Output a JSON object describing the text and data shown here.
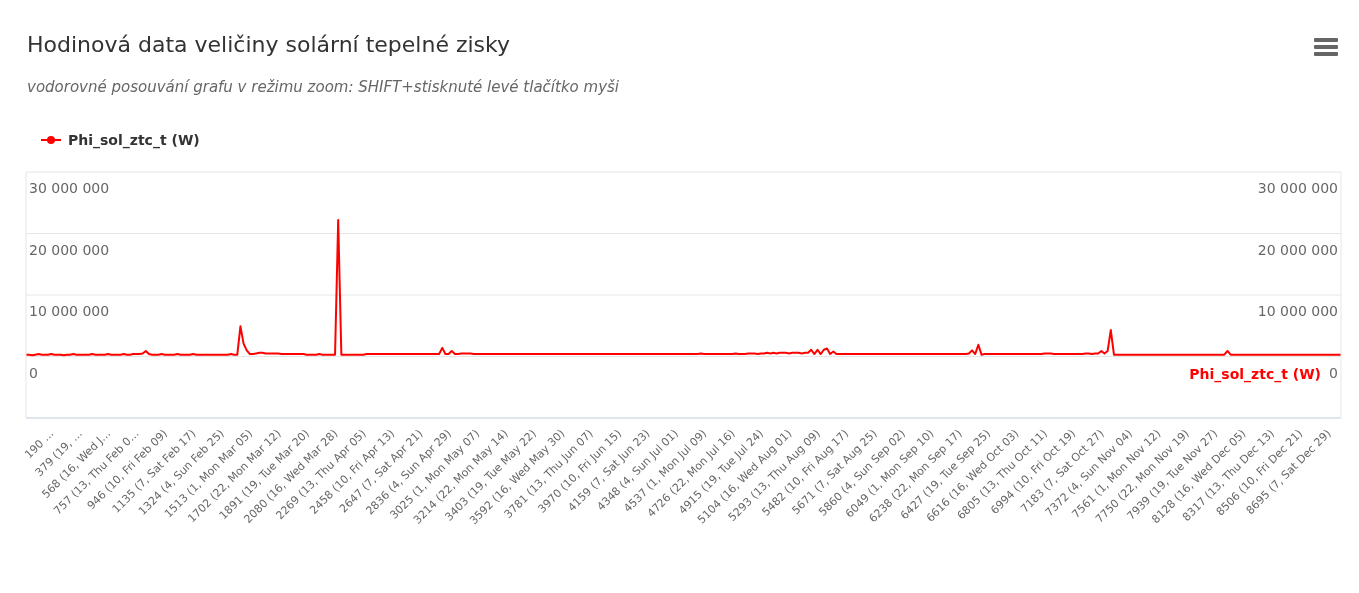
{
  "chart_data": {
    "type": "line",
    "title": "Hodinová data veličiny solární tepelné zisky",
    "subtitle": "vodorovné posouvání grafu v režimu zoom: SHIFT+stisknuté levé tlačítko myši",
    "y2label": "Phi_sol_ztc_t (W)",
    "categories": [
      null,
      null,
      null,
      null,
      null,
      null,
      null,
      null,
      null,
      "190 …",
      null,
      null,
      null,
      null,
      null,
      null,
      null,
      null,
      "379 (19, …",
      null,
      null,
      null,
      null,
      null,
      null,
      null,
      null,
      "568 (16, Wed J…",
      null,
      null,
      null,
      null,
      null,
      null,
      null,
      null,
      "757 (13, Thu Feb 0…",
      null,
      null,
      null,
      null,
      null,
      null,
      null,
      null,
      "946 (10, Fri Feb 09)",
      null,
      null,
      null,
      null,
      null,
      null,
      null,
      null,
      "1135 (7, Sat Feb 17)",
      null,
      null,
      null,
      null,
      null,
      null,
      null,
      null,
      "1324 (4, Sun Feb 25)",
      null,
      null,
      null,
      null,
      null,
      null,
      null,
      null,
      "1513 (1, Mon Mar 05)",
      null,
      null,
      null,
      null,
      null,
      null,
      null,
      null,
      "1702 (22, Mon Mar 12)",
      null,
      null,
      null,
      null,
      null,
      null,
      null,
      null,
      "1891 (19, Tue Mar 20)",
      null,
      null,
      null,
      null,
      null,
      null,
      null,
      null,
      "2080 (16, Wed Mar 28)",
      null,
      null,
      null,
      null,
      null,
      null,
      null,
      null,
      "2269 (13, Thu Apr 05)",
      null,
      null,
      null,
      null,
      null,
      null,
      null,
      null,
      "2458 (10, Fri Apr 13)",
      null,
      null,
      null,
      null,
      null,
      null,
      null,
      null,
      "2647 (7, Sat Apr 21)",
      null,
      null,
      null,
      null,
      null,
      null,
      null,
      null,
      "2836 (4, Sun Apr 29)",
      null,
      null,
      null,
      null,
      null,
      null,
      null,
      null,
      "3025 (1, Mon May 07)",
      null,
      null,
      null,
      null,
      null,
      null,
      null,
      null,
      "3214 (22, Mon May 14)",
      null,
      null,
      null,
      null,
      null,
      null,
      null,
      null,
      "3403 (19, Tue May 22)",
      null,
      null,
      null,
      null,
      null,
      null,
      null,
      null,
      "3592 (16, Wed May 30)",
      null,
      null,
      null,
      null,
      null,
      null,
      null,
      null,
      "3781 (13, Thu Jun 07)",
      null,
      null,
      null,
      null,
      null,
      null,
      null,
      null,
      "3970 (10, Fri Jun 15)",
      null,
      null,
      null,
      null,
      null,
      null,
      null,
      null,
      "4159 (7, Sat Jun 23)",
      null,
      null,
      null,
      null,
      null,
      null,
      null,
      null,
      "4348 (4, Sun Jul 01)",
      null,
      null,
      null,
      null,
      null,
      null,
      null,
      null,
      "4537 (1, Mon Jul 09)",
      null,
      null,
      null,
      null,
      null,
      null,
      null,
      null,
      "4726 (22, Mon Jul 16)",
      null,
      null,
      null,
      null,
      null,
      null,
      null,
      null,
      "4915 (19, Tue Jul 24)",
      null,
      null,
      null,
      null,
      null,
      null,
      null,
      null,
      "5104 (16, Wed Aug 01)",
      null,
      null,
      null,
      null,
      null,
      null,
      null,
      null,
      "5293 (13, Thu Aug 09)",
      null,
      null,
      null,
      null,
      null,
      null,
      null,
      null,
      "5482 (10, Fri Aug 17)",
      null,
      null,
      null,
      null,
      null,
      null,
      null,
      null,
      "5671 (7, Sat Aug 25)",
      null,
      null,
      null,
      null,
      null,
      null,
      null,
      null,
      "5860 (4, Sun Sep 02)",
      null,
      null,
      null,
      null,
      null,
      null,
      null,
      null,
      "6049 (1, Mon Sep 10)",
      null,
      null,
      null,
      null,
      null,
      null,
      null,
      null,
      "6238 (22, Mon Sep 17)",
      null,
      null,
      null,
      null,
      null,
      null,
      null,
      null,
      "6427 (19, Tue Sep 25)",
      null,
      null,
      null,
      null,
      null,
      null,
      null,
      null,
      "6616 (16, Wed Oct 03)",
      null,
      null,
      null,
      null,
      null,
      null,
      null,
      null,
      "6805 (13, Thu Oct 11)",
      null,
      null,
      null,
      null,
      null,
      null,
      null,
      null,
      "6994 (10, Fri Oct 19)",
      null,
      null,
      null,
      null,
      null,
      null,
      null,
      null,
      "7183 (7, Sat Oct 27)",
      null,
      null,
      null,
      null,
      null,
      null,
      null,
      null,
      "7372 (4, Sun Nov 04)",
      null,
      null,
      null,
      null,
      null,
      null,
      null,
      null,
      "7561 (1, Mon Nov 12)",
      null,
      null,
      null,
      null,
      null,
      null,
      null,
      null,
      "7750 (22, Mon Nov 19)",
      null,
      null,
      null,
      null,
      null,
      null,
      null,
      null,
      "7939 (19, Tue Nov 27)",
      null,
      null,
      null,
      null,
      null,
      null,
      null,
      null,
      "8128 (16, Wed Dec 05)",
      null,
      null,
      null,
      null,
      null,
      null,
      null,
      null,
      "8317 (13, Thu Dec 13)",
      null,
      null,
      null,
      null,
      null,
      null,
      null,
      null,
      "8506 (10, Fri Dec 21)",
      null,
      null,
      null,
      null,
      null,
      null,
      null,
      null,
      "8695 (7, Sat Dec 29)",
      null,
      null,
      null
    ],
    "series": [
      {
        "name": "Phi_sol_ztc_t (W)",
        "color": "#ff0000",
        "values": [
          300000,
          300000,
          200000,
          300000,
          400000,
          300000,
          300000,
          300000,
          400000,
          300000,
          300000,
          300000,
          200000,
          300000,
          300000,
          400000,
          300000,
          300000,
          300000,
          300000,
          300000,
          400000,
          300000,
          300000,
          300000,
          300000,
          400000,
          300000,
          300000,
          300000,
          300000,
          400000,
          300000,
          300000,
          400000,
          400000,
          400000,
          500000,
          900000,
          400000,
          300000,
          300000,
          300000,
          400000,
          300000,
          300000,
          300000,
          300000,
          400000,
          300000,
          300000,
          300000,
          300000,
          400000,
          300000,
          300000,
          300000,
          300000,
          300000,
          300000,
          300000,
          300000,
          300000,
          300000,
          300000,
          400000,
          300000,
          300000,
          4900000,
          2100000,
          1000000,
          400000,
          400000,
          500000,
          600000,
          600000,
          500000,
          500000,
          500000,
          500000,
          500000,
          400000,
          400000,
          400000,
          400000,
          400000,
          400000,
          400000,
          400000,
          300000,
          300000,
          300000,
          300000,
          400000,
          300000,
          300000,
          300000,
          300000,
          300000,
          22200000,
          300000,
          300000,
          300000,
          300000,
          300000,
          300000,
          300000,
          300000,
          400000,
          400000,
          400000,
          400000,
          400000,
          400000,
          400000,
          400000,
          400000,
          400000,
          400000,
          400000,
          400000,
          400000,
          400000,
          400000,
          400000,
          400000,
          400000,
          400000,
          400000,
          400000,
          400000,
          400000,
          1400000,
          400000,
          400000,
          900000,
          400000,
          400000,
          500000,
          500000,
          500000,
          500000,
          400000,
          400000,
          400000,
          400000,
          400000,
          400000,
          400000,
          400000,
          400000,
          400000,
          400000,
          400000,
          400000,
          400000,
          400000,
          400000,
          400000,
          400000,
          400000,
          400000,
          400000,
          400000,
          400000,
          400000,
          400000,
          400000,
          400000,
          400000,
          400000,
          400000,
          400000,
          400000,
          400000,
          400000,
          400000,
          400000,
          400000,
          400000,
          400000,
          400000,
          400000,
          400000,
          400000,
          400000,
          400000,
          400000,
          400000,
          400000,
          400000,
          400000,
          400000,
          400000,
          400000,
          400000,
          400000,
          400000,
          400000,
          400000,
          400000,
          400000,
          400000,
          400000,
          400000,
          400000,
          400000,
          400000,
          400000,
          400000,
          400000,
          400000,
          400000,
          400000,
          500000,
          400000,
          400000,
          400000,
          400000,
          400000,
          400000,
          400000,
          400000,
          400000,
          400000,
          500000,
          400000,
          400000,
          400000,
          500000,
          500000,
          500000,
          400000,
          500000,
          500000,
          600000,
          500000,
          600000,
          500000,
          600000,
          600000,
          600000,
          500000,
          600000,
          600000,
          600000,
          500000,
          600000,
          600000,
          1100000,
          400000,
          1100000,
          400000,
          1100000,
          1300000,
          400000,
          800000,
          400000,
          400000,
          400000,
          400000,
          400000,
          400000,
          400000,
          400000,
          400000,
          400000,
          400000,
          400000,
          400000,
          400000,
          400000,
          400000,
          400000,
          400000,
          400000,
          400000,
          400000,
          400000,
          400000,
          400000,
          400000,
          400000,
          400000,
          400000,
          400000,
          400000,
          400000,
          400000,
          400000,
          400000,
          400000,
          400000,
          400000,
          400000,
          400000,
          400000,
          400000,
          400000,
          500000,
          1000000,
          400000,
          1900000,
          300000,
          400000,
          400000,
          400000,
          400000,
          400000,
          400000,
          400000,
          400000,
          400000,
          400000,
          400000,
          400000,
          400000,
          400000,
          400000,
          400000,
          400000,
          400000,
          400000,
          500000,
          500000,
          500000,
          400000,
          400000,
          400000,
          400000,
          400000,
          400000,
          400000,
          400000,
          400000,
          400000,
          500000,
          500000,
          400000,
          500000,
          500000,
          900000,
          500000,
          900000,
          4300000,
          300000,
          300000,
          300000,
          300000,
          300000,
          300000,
          300000,
          300000,
          300000,
          300000,
          300000,
          300000,
          300000,
          300000,
          300000,
          300000,
          300000,
          300000,
          300000,
          300000,
          300000,
          300000,
          300000,
          300000,
          300000,
          300000,
          300000,
          300000,
          300000,
          300000,
          300000,
          300000,
          300000,
          300000,
          300000,
          300000,
          900000,
          300000,
          300000,
          300000,
          300000,
          300000,
          300000,
          300000,
          300000,
          300000,
          300000,
          300000,
          300000,
          300000,
          300000,
          300000,
          300000,
          300000,
          300000,
          300000,
          300000,
          300000,
          300000,
          300000,
          300000,
          300000,
          300000,
          300000,
          300000,
          300000,
          300000,
          300000,
          300000,
          300000,
          300000,
          300000,
          300000
        ]
      }
    ],
    "ylim": [
      -10000000,
      30000000
    ],
    "yticks": [
      {
        "value": 0,
        "label": "0"
      },
      {
        "value": 10000000,
        "label": "10 000 000"
      },
      {
        "value": 20000000,
        "label": "20 000 000"
      },
      {
        "value": 30000000,
        "label": "30 000 000"
      }
    ],
    "y2lim": [
      -10000000,
      30000000
    ],
    "y2ticks": [
      {
        "value": 0,
        "label": "0"
      },
      {
        "value": 10000000,
        "label": "10 000 000"
      },
      {
        "value": 20000000,
        "label": "20 000 000"
      },
      {
        "value": 30000000,
        "label": "30 000 000"
      }
    ],
    "grid": "y",
    "legend": "top left",
    "line_style": "solid"
  }
}
